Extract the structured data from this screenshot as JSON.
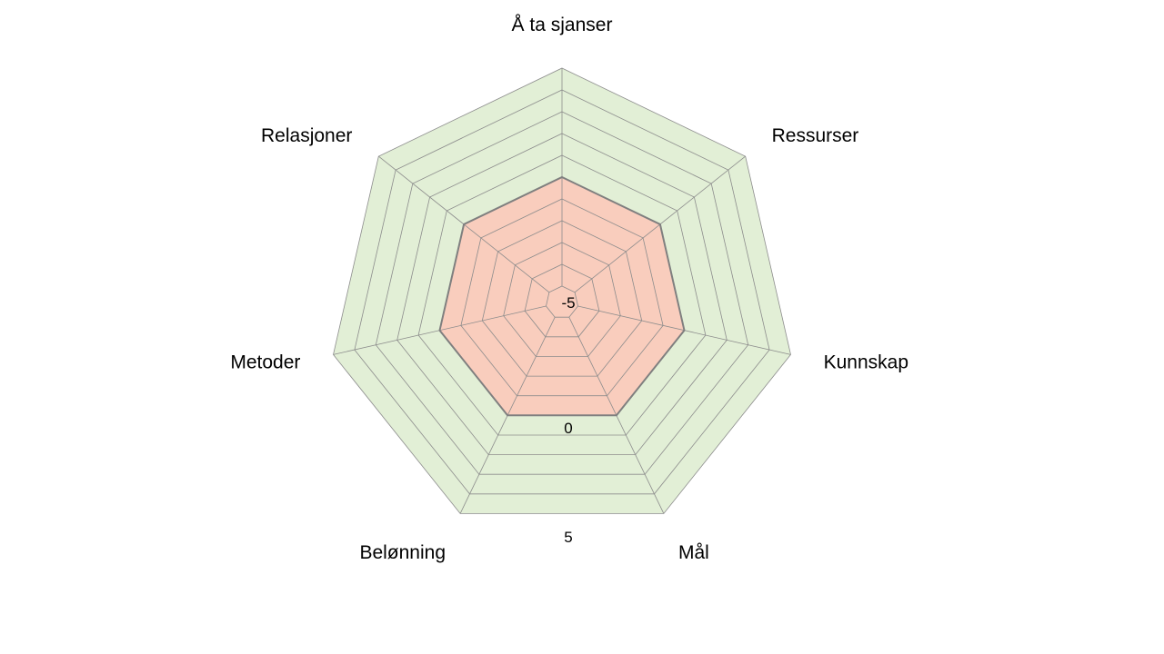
{
  "chart_data": {
    "type": "radar",
    "categories": [
      "Å ta sjanser",
      "Ressurser",
      "Kunnskap",
      "Mål",
      "Belønning",
      "Metoder",
      "Relasjoner"
    ],
    "ylim": [
      -5,
      5
    ],
    "tick_labels": [
      "-5",
      "0",
      "5"
    ],
    "ring_step": 1,
    "grid": true,
    "series": [
      {
        "values": [
          0,
          0,
          0,
          0,
          0,
          0,
          0
        ]
      }
    ],
    "colors": {
      "positive_region": "#e2efd6",
      "negative_region": "#f9cdbd",
      "grid": "#8c8c8c",
      "series_line": "#7f7f7f"
    }
  }
}
